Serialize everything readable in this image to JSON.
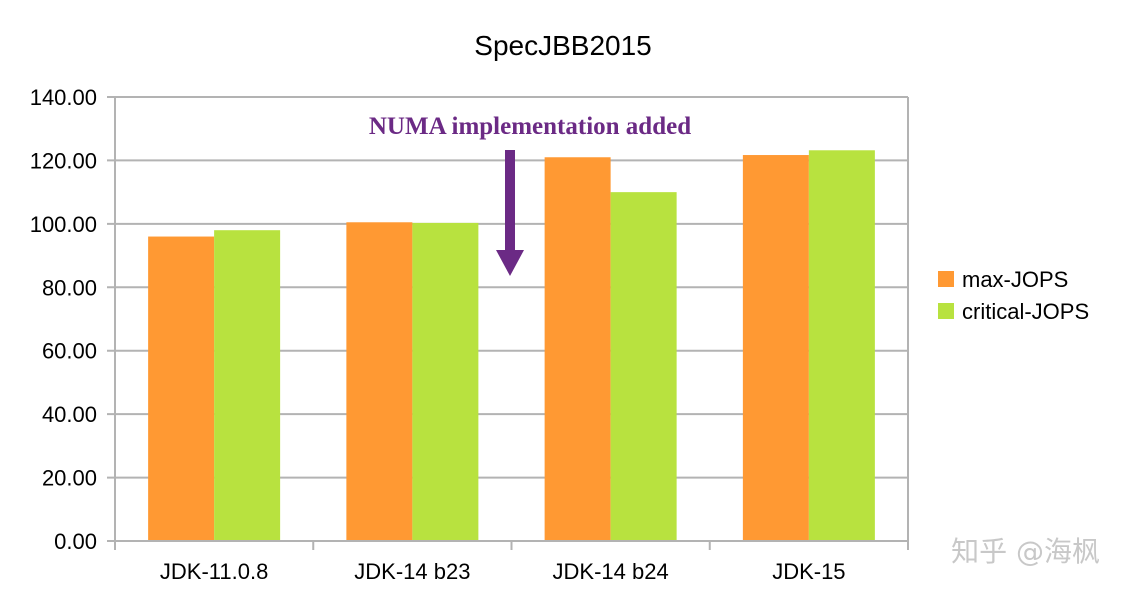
{
  "chart_data": {
    "type": "bar",
    "title": "SpecJBB2015",
    "xlabel": "",
    "ylabel": "",
    "ylim": [
      0,
      140
    ],
    "yticks": [
      "0.00",
      "20.00",
      "40.00",
      "60.00",
      "80.00",
      "100.00",
      "120.00",
      "140.00"
    ],
    "grid": true,
    "legend_position": "right",
    "categories": [
      "JDK-11.0.8",
      "JDK-14 b23",
      "JDK-14 b24",
      "JDK-15"
    ],
    "series": [
      {
        "name": "max-JOPS",
        "color": "#ff9933",
        "values": [
          96,
          100.5,
          121,
          121.7
        ]
      },
      {
        "name": "critical-JOPS",
        "color": "#b8e23f",
        "values": [
          98,
          100.3,
          110,
          123.2
        ]
      }
    ],
    "annotation": {
      "text": "NUMA implementation added",
      "color": "#6b2a85",
      "between": [
        "JDK-14 b23",
        "JDK-14 b24"
      ]
    }
  },
  "watermark": "知乎 @海枫",
  "colors": {
    "grid": "#b3b3b3",
    "axis": "#b3b3b3"
  }
}
